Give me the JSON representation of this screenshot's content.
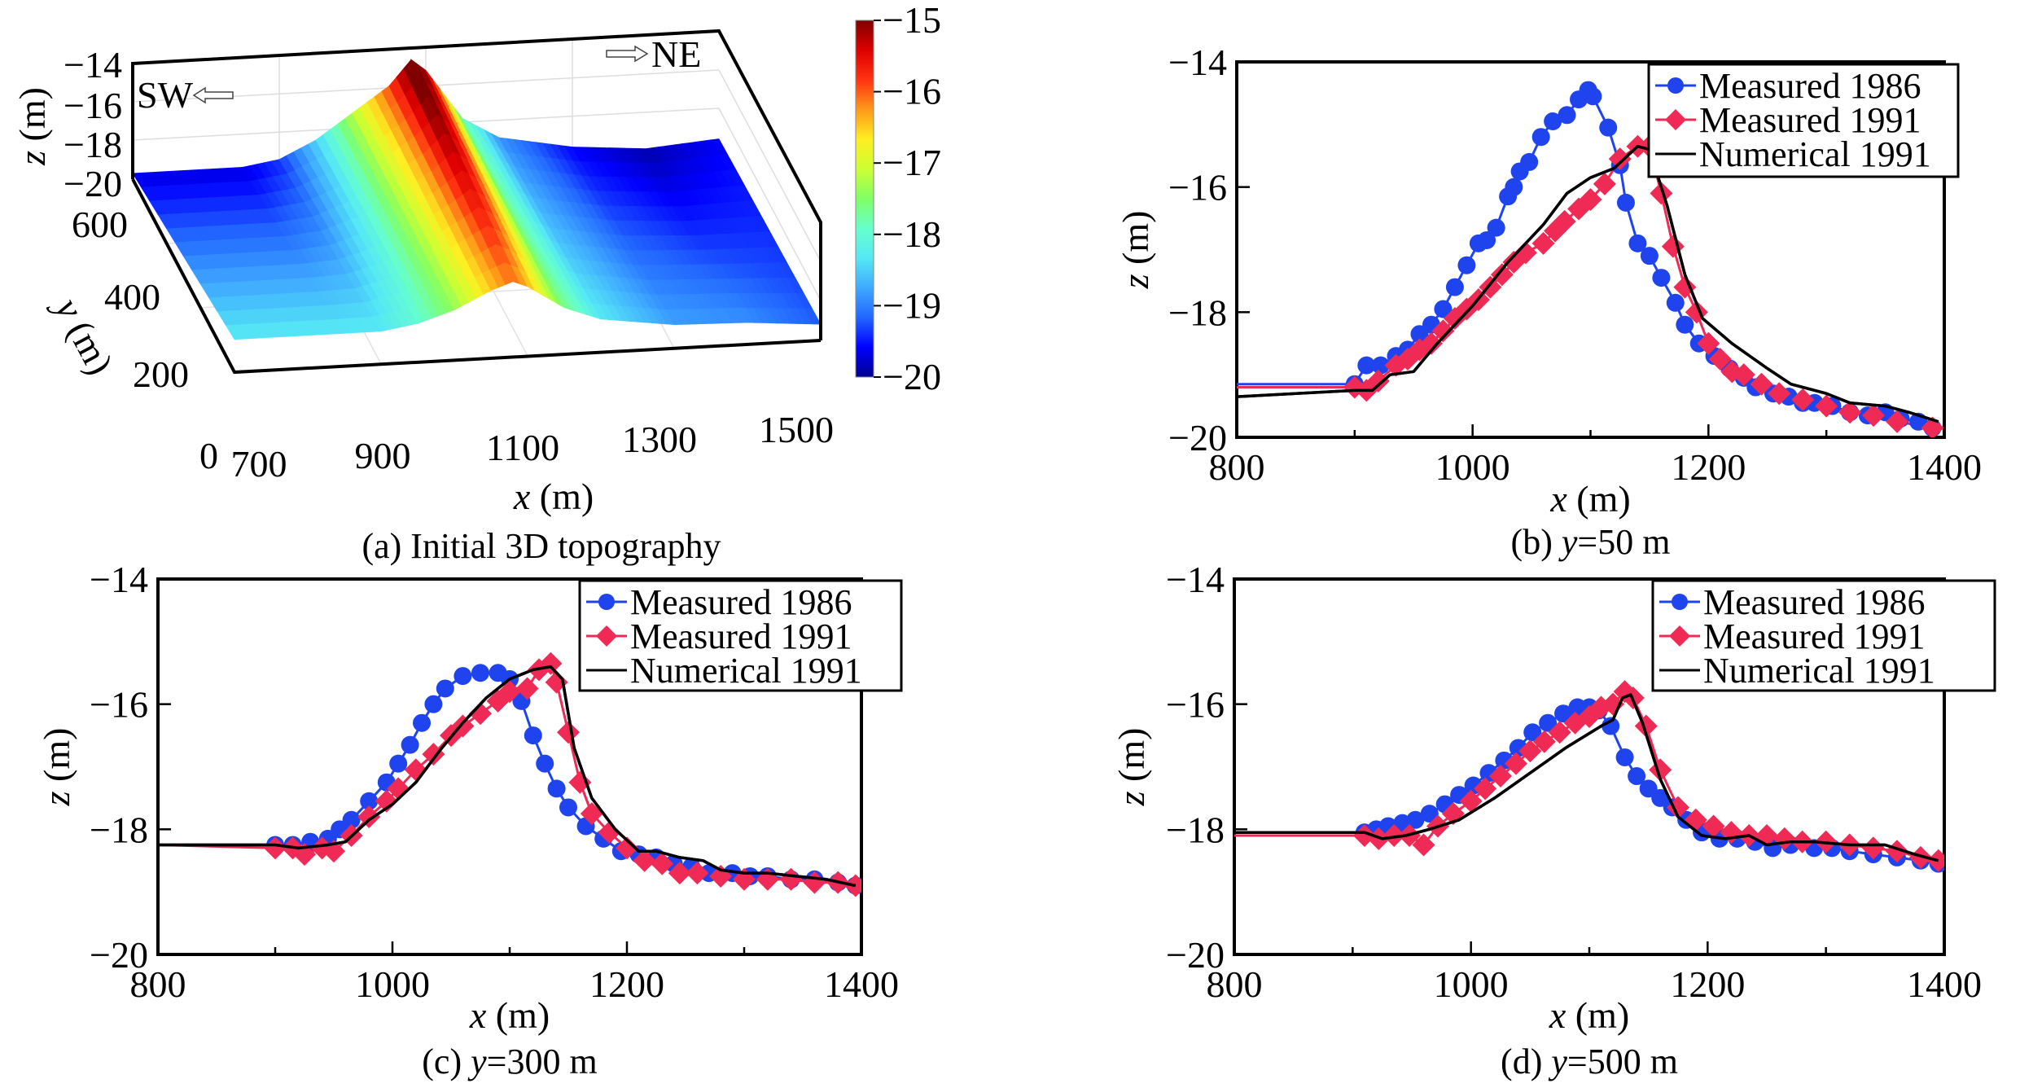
{
  "figure": {
    "panel_a": {
      "caption": "(a) Initial 3D topography",
      "xlabel_var": "x",
      "xlabel_unit": " (m)",
      "ylabel_var": "y",
      "ylabel_unit": " (m)",
      "zlabel_var": "z",
      "zlabel_unit": " (m)",
      "x_ticks": [
        "700",
        "900",
        "1100",
        "1300",
        "1500"
      ],
      "y_ticks": [
        "0",
        "200",
        "400",
        "600"
      ],
      "z_ticks": [
        "−14",
        "−16",
        "−18",
        "−20"
      ],
      "sw_label": "SW",
      "ne_label": "NE",
      "colorbar_ticks": [
        "−15",
        "−16",
        "−17",
        "−18",
        "−19",
        "−20"
      ],
      "colormap": [
        "#00008f",
        "#0000ff",
        "#2266ff",
        "#3fa9ff",
        "#55e8f5",
        "#66ffcc",
        "#80ff66",
        "#ccff33",
        "#ffee22",
        "#ff9919",
        "#ff3311",
        "#dd0000",
        "#800000"
      ]
    },
    "legend": {
      "entries": [
        "Measured 1986",
        "Measured 1991",
        "Numerical 1991"
      ]
    },
    "colors": {
      "measured_1986": "#1f44ee",
      "measured_1991": "#ee2a55",
      "numerical_1991": "#000000"
    }
  },
  "chart_data": [
    {
      "type": "surface3d",
      "panel": "a",
      "title": "(a) Initial 3D topography",
      "xlabel": "x (m)",
      "ylabel": "y (m)",
      "zlabel": "z (m)",
      "xlim": [
        700,
        1500
      ],
      "ylim": [
        0,
        600
      ],
      "zlim": [
        -20,
        -14
      ],
      "x_ticks": [
        700,
        900,
        1100,
        1300,
        1500
      ],
      "y_ticks": [
        0,
        200,
        400,
        600
      ],
      "z_ticks": [
        -14,
        -16,
        -18,
        -20
      ],
      "colorbar": {
        "range": [
          -20,
          -15
        ],
        "ticks": [
          -15,
          -16,
          -17,
          -18,
          -19,
          -20
        ]
      },
      "annotations": [
        "SW",
        "NE"
      ],
      "ridge_profile_x": [
        700,
        850,
        900,
        950,
        1000,
        1050,
        1080,
        1100,
        1150,
        1200,
        1300,
        1400,
        1500
      ],
      "ridge_profile_z_back": [
        -19.7,
        -19.7,
        -19.4,
        -18.5,
        -17.2,
        -15.9,
        -14.6,
        -15.2,
        -17.8,
        -18.9,
        -19.6,
        -19.9,
        -19.6
      ],
      "ridge_profile_z_front": [
        -18.3,
        -18.3,
        -18.3,
        -18.0,
        -17.4,
        -16.5,
        -16.1,
        -16.4,
        -17.6,
        -18.3,
        -18.8,
        -18.9,
        -19.2
      ]
    },
    {
      "type": "line",
      "panel": "b",
      "title": "(b) y=50 m",
      "caption_prefix": "(b) ",
      "caption_var": "y",
      "caption_suffix": "=50 m",
      "xlabel": "x (m)",
      "ylabel": "z (m)",
      "xlim": [
        800,
        1400
      ],
      "ylim": [
        -20,
        -14
      ],
      "x_ticks": [
        800,
        1000,
        1200,
        1400
      ],
      "y_ticks": [
        -14,
        -16,
        -18,
        -20
      ],
      "legend": "top-right",
      "series": [
        {
          "name": "Measured 1986",
          "marker": "circle",
          "x": [
            800,
            900,
            910,
            922,
            935,
            945,
            955,
            965,
            975,
            985,
            995,
            1005,
            1012,
            1020,
            1030,
            1035,
            1040,
            1048,
            1058,
            1068,
            1080,
            1090,
            1098,
            1102,
            1115,
            1125,
            1130,
            1140,
            1150,
            1160,
            1172,
            1180,
            1192,
            1205,
            1218,
            1230,
            1240,
            1255,
            1268,
            1280,
            1290,
            1305,
            1320,
            1335,
            1350,
            1363,
            1378,
            1390
          ],
          "y": [
            -19.15,
            -19.15,
            -18.85,
            -18.85,
            -18.7,
            -18.6,
            -18.35,
            -18.2,
            -17.95,
            -17.6,
            -17.25,
            -16.9,
            -16.85,
            -16.65,
            -16.15,
            -16.0,
            -15.75,
            -15.6,
            -15.2,
            -14.95,
            -14.85,
            -14.6,
            -14.45,
            -14.55,
            -15.05,
            -15.65,
            -16.25,
            -16.9,
            -17.1,
            -17.45,
            -17.85,
            -18.2,
            -18.5,
            -18.7,
            -18.9,
            -19.05,
            -19.2,
            -19.3,
            -19.35,
            -19.45,
            -19.45,
            -19.5,
            -19.6,
            -19.65,
            -19.6,
            -19.7,
            -19.75,
            -19.85
          ],
          "marker_from": 1
        },
        {
          "name": "Measured 1991",
          "marker": "diamond",
          "x": [
            800,
            900,
            910,
            920,
            935,
            945,
            955,
            965,
            975,
            985,
            995,
            1005,
            1015,
            1025,
            1035,
            1045,
            1060,
            1070,
            1078,
            1090,
            1100,
            1112,
            1125,
            1140,
            1150,
            1160,
            1170,
            1180,
            1190,
            1200,
            1210,
            1220,
            1230,
            1245,
            1260,
            1280,
            1300,
            1320,
            1340,
            1360,
            1390
          ],
          "y": [
            -19.2,
            -19.2,
            -19.25,
            -19.1,
            -18.85,
            -18.75,
            -18.6,
            -18.5,
            -18.3,
            -18.1,
            -17.95,
            -17.8,
            -17.6,
            -17.4,
            -17.2,
            -17.05,
            -16.9,
            -16.7,
            -16.55,
            -16.35,
            -16.2,
            -15.95,
            -15.55,
            -15.35,
            -15.35,
            -16.1,
            -16.95,
            -17.6,
            -18.0,
            -18.5,
            -18.75,
            -18.95,
            -19.0,
            -19.15,
            -19.3,
            -19.4,
            -19.5,
            -19.6,
            -19.65,
            -19.75,
            -19.85
          ],
          "marker_from": 1
        },
        {
          "name": "Numerical 1991",
          "marker": "none",
          "x": [
            800,
            900,
            915,
            930,
            950,
            970,
            1000,
            1030,
            1060,
            1080,
            1100,
            1120,
            1140,
            1150,
            1165,
            1180,
            1195,
            1220,
            1250,
            1270,
            1300,
            1320,
            1350,
            1370,
            1395
          ],
          "y": [
            -19.35,
            -19.25,
            -19.25,
            -19.0,
            -18.95,
            -18.5,
            -17.9,
            -17.2,
            -16.6,
            -16.1,
            -15.85,
            -15.7,
            -15.35,
            -15.4,
            -16.3,
            -17.4,
            -18.1,
            -18.5,
            -18.9,
            -19.15,
            -19.3,
            -19.45,
            -19.5,
            -19.6,
            -19.75
          ]
        }
      ]
    },
    {
      "type": "line",
      "panel": "c",
      "title": "(c) y=300 m",
      "caption_prefix": "(c) ",
      "caption_var": "y",
      "caption_suffix": "=300 m",
      "xlabel": "x (m)",
      "ylabel": "z (m)",
      "xlim": [
        800,
        1400
      ],
      "ylim": [
        -20,
        -14
      ],
      "x_ticks": [
        800,
        1000,
        1200,
        1400
      ],
      "y_ticks": [
        -14,
        -16,
        -18,
        -20
      ],
      "legend": "top-right",
      "series": [
        {
          "name": "Measured 1986",
          "marker": "circle",
          "x": [
            800,
            900,
            915,
            930,
            945,
            955,
            965,
            980,
            995,
            1005,
            1015,
            1025,
            1035,
            1045,
            1060,
            1075,
            1090,
            1100,
            1110,
            1120,
            1130,
            1140,
            1150,
            1165,
            1180,
            1195,
            1210,
            1225,
            1240,
            1255,
            1270,
            1290,
            1305,
            1320,
            1340,
            1360,
            1380,
            1395
          ],
          "y": [
            -18.25,
            -18.25,
            -18.25,
            -18.2,
            -18.15,
            -18.0,
            -17.85,
            -17.55,
            -17.25,
            -16.95,
            -16.65,
            -16.3,
            -16.0,
            -15.75,
            -15.55,
            -15.5,
            -15.5,
            -15.6,
            -15.95,
            -16.5,
            -16.95,
            -17.35,
            -17.65,
            -17.95,
            -18.15,
            -18.35,
            -18.4,
            -18.45,
            -18.55,
            -18.6,
            -18.7,
            -18.7,
            -18.75,
            -18.75,
            -18.8,
            -18.8,
            -18.85,
            -18.9
          ],
          "marker_from": 1
        },
        {
          "name": "Measured 1991",
          "marker": "diamond",
          "x": [
            800,
            900,
            915,
            925,
            940,
            950,
            965,
            980,
            995,
            1005,
            1020,
            1035,
            1050,
            1060,
            1075,
            1090,
            1100,
            1115,
            1125,
            1135,
            1140,
            1150,
            1160,
            1170,
            1185,
            1200,
            1215,
            1230,
            1245,
            1260,
            1280,
            1300,
            1320,
            1340,
            1360,
            1380,
            1395
          ],
          "y": [
            -18.25,
            -18.3,
            -18.3,
            -18.4,
            -18.3,
            -18.35,
            -18.1,
            -17.8,
            -17.55,
            -17.35,
            -17.05,
            -16.8,
            -16.5,
            -16.35,
            -16.15,
            -15.95,
            -15.8,
            -15.75,
            -15.45,
            -15.35,
            -15.65,
            -16.45,
            -17.25,
            -17.75,
            -18.05,
            -18.3,
            -18.5,
            -18.55,
            -18.7,
            -18.7,
            -18.75,
            -18.8,
            -18.8,
            -18.8,
            -18.85,
            -18.85,
            -18.9
          ],
          "marker_from": 1
        },
        {
          "name": "Numerical 1991",
          "marker": "none",
          "x": [
            800,
            900,
            920,
            945,
            960,
            980,
            1000,
            1020,
            1040,
            1060,
            1080,
            1100,
            1120,
            1135,
            1145,
            1155,
            1170,
            1190,
            1210,
            1225,
            1245,
            1265,
            1280,
            1300,
            1320,
            1345,
            1370,
            1395
          ],
          "y": [
            -18.25,
            -18.25,
            -18.3,
            -18.25,
            -18.2,
            -17.85,
            -17.6,
            -17.25,
            -16.75,
            -16.3,
            -15.9,
            -15.6,
            -15.45,
            -15.4,
            -15.6,
            -16.7,
            -17.5,
            -18.0,
            -18.35,
            -18.35,
            -18.45,
            -18.5,
            -18.65,
            -18.7,
            -18.7,
            -18.75,
            -18.8,
            -18.9
          ]
        }
      ]
    },
    {
      "type": "line",
      "panel": "d",
      "title": "(d) y=500 m",
      "caption_prefix": "(d) ",
      "caption_var": "y",
      "caption_suffix": "=500 m",
      "xlabel": "x (m)",
      "ylabel": "z (m)",
      "xlim": [
        800,
        1400
      ],
      "ylim": [
        -20,
        -14
      ],
      "x_ticks": [
        800,
        1000,
        1200,
        1400
      ],
      "y_ticks": [
        -14,
        -16,
        -18,
        -20
      ],
      "legend": "top-right",
      "series": [
        {
          "name": "Measured 1986",
          "marker": "circle",
          "x": [
            800,
            910,
            920,
            930,
            942,
            953,
            965,
            978,
            990,
            1002,
            1015,
            1028,
            1040,
            1052,
            1065,
            1078,
            1090,
            1100,
            1108,
            1118,
            1130,
            1140,
            1150,
            1160,
            1170,
            1182,
            1195,
            1210,
            1225,
            1240,
            1255,
            1270,
            1290,
            1305,
            1320,
            1340,
            1360,
            1380,
            1395
          ],
          "y": [
            -18.05,
            -18.05,
            -18.0,
            -17.95,
            -17.9,
            -17.85,
            -17.75,
            -17.6,
            -17.45,
            -17.3,
            -17.1,
            -16.9,
            -16.7,
            -16.45,
            -16.3,
            -16.15,
            -16.05,
            -16.05,
            -16.1,
            -16.35,
            -16.85,
            -17.15,
            -17.35,
            -17.5,
            -17.65,
            -17.85,
            -18.05,
            -18.15,
            -18.15,
            -18.2,
            -18.3,
            -18.25,
            -18.3,
            -18.3,
            -18.35,
            -18.4,
            -18.45,
            -18.5,
            -18.55
          ],
          "marker_from": 1
        },
        {
          "name": "Measured 1991",
          "marker": "diamond",
          "x": [
            800,
            910,
            922,
            935,
            948,
            960,
            972,
            985,
            1000,
            1012,
            1025,
            1038,
            1050,
            1062,
            1075,
            1088,
            1100,
            1110,
            1120,
            1130,
            1137,
            1148,
            1160,
            1175,
            1190,
            1205,
            1220,
            1235,
            1250,
            1265,
            1280,
            1300,
            1320,
            1340,
            1360,
            1380,
            1395
          ],
          "y": [
            -18.1,
            -18.1,
            -18.15,
            -18.1,
            -18.1,
            -18.25,
            -17.95,
            -17.75,
            -17.55,
            -17.35,
            -17.15,
            -16.95,
            -16.75,
            -16.6,
            -16.45,
            -16.3,
            -16.2,
            -16.05,
            -16.0,
            -15.8,
            -15.9,
            -16.35,
            -17.05,
            -17.65,
            -17.85,
            -17.95,
            -18.05,
            -18.1,
            -18.1,
            -18.15,
            -18.2,
            -18.2,
            -18.25,
            -18.3,
            -18.35,
            -18.45,
            -18.5
          ],
          "marker_from": 1
        },
        {
          "name": "Numerical 1991",
          "marker": "none",
          "x": [
            800,
            910,
            925,
            945,
            965,
            990,
            1020,
            1050,
            1080,
            1110,
            1120,
            1128,
            1135,
            1145,
            1160,
            1175,
            1195,
            1215,
            1235,
            1250,
            1270,
            1290,
            1320,
            1350,
            1375,
            1395
          ],
          "y": [
            -18.05,
            -18.05,
            -18.15,
            -18.1,
            -18.0,
            -17.85,
            -17.5,
            -17.1,
            -16.7,
            -16.35,
            -16.25,
            -15.9,
            -15.85,
            -16.3,
            -17.2,
            -17.8,
            -18.1,
            -18.15,
            -18.1,
            -18.25,
            -18.2,
            -18.2,
            -18.25,
            -18.25,
            -18.4,
            -18.5
          ]
        }
      ]
    }
  ]
}
